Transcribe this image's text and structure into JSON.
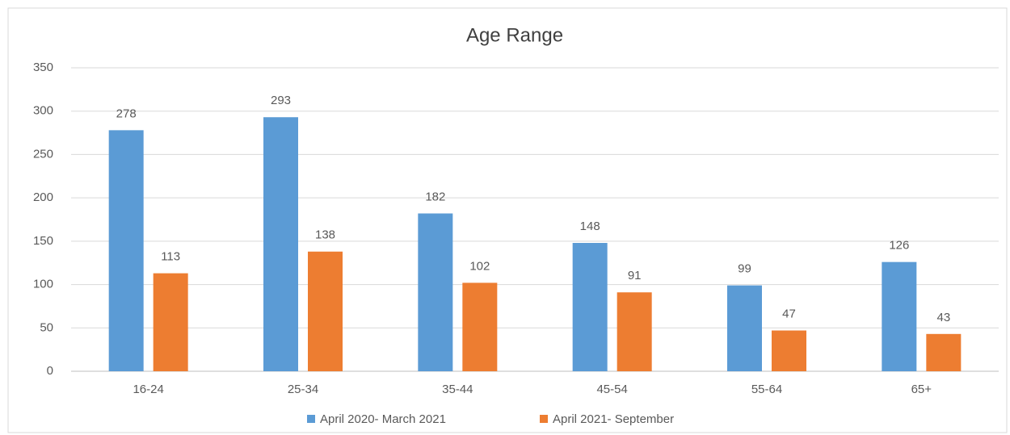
{
  "chart_data": {
    "type": "bar",
    "title": "Age Range",
    "categories": [
      "16-24",
      "25-34",
      "35-44",
      "45-54",
      "55-64",
      "65+"
    ],
    "series": [
      {
        "name": "April 2020- March 2021",
        "color": "#5b9bd5",
        "values": [
          278,
          293,
          182,
          148,
          99,
          126
        ]
      },
      {
        "name": "April 2021- September",
        "color": "#ed7d31",
        "values": [
          113,
          138,
          102,
          91,
          47,
          43
        ]
      }
    ],
    "ylim": [
      0,
      350
    ],
    "yticks": [
      0,
      50,
      100,
      150,
      200,
      250,
      300,
      350
    ],
    "grid": true,
    "legend": "bottom"
  }
}
